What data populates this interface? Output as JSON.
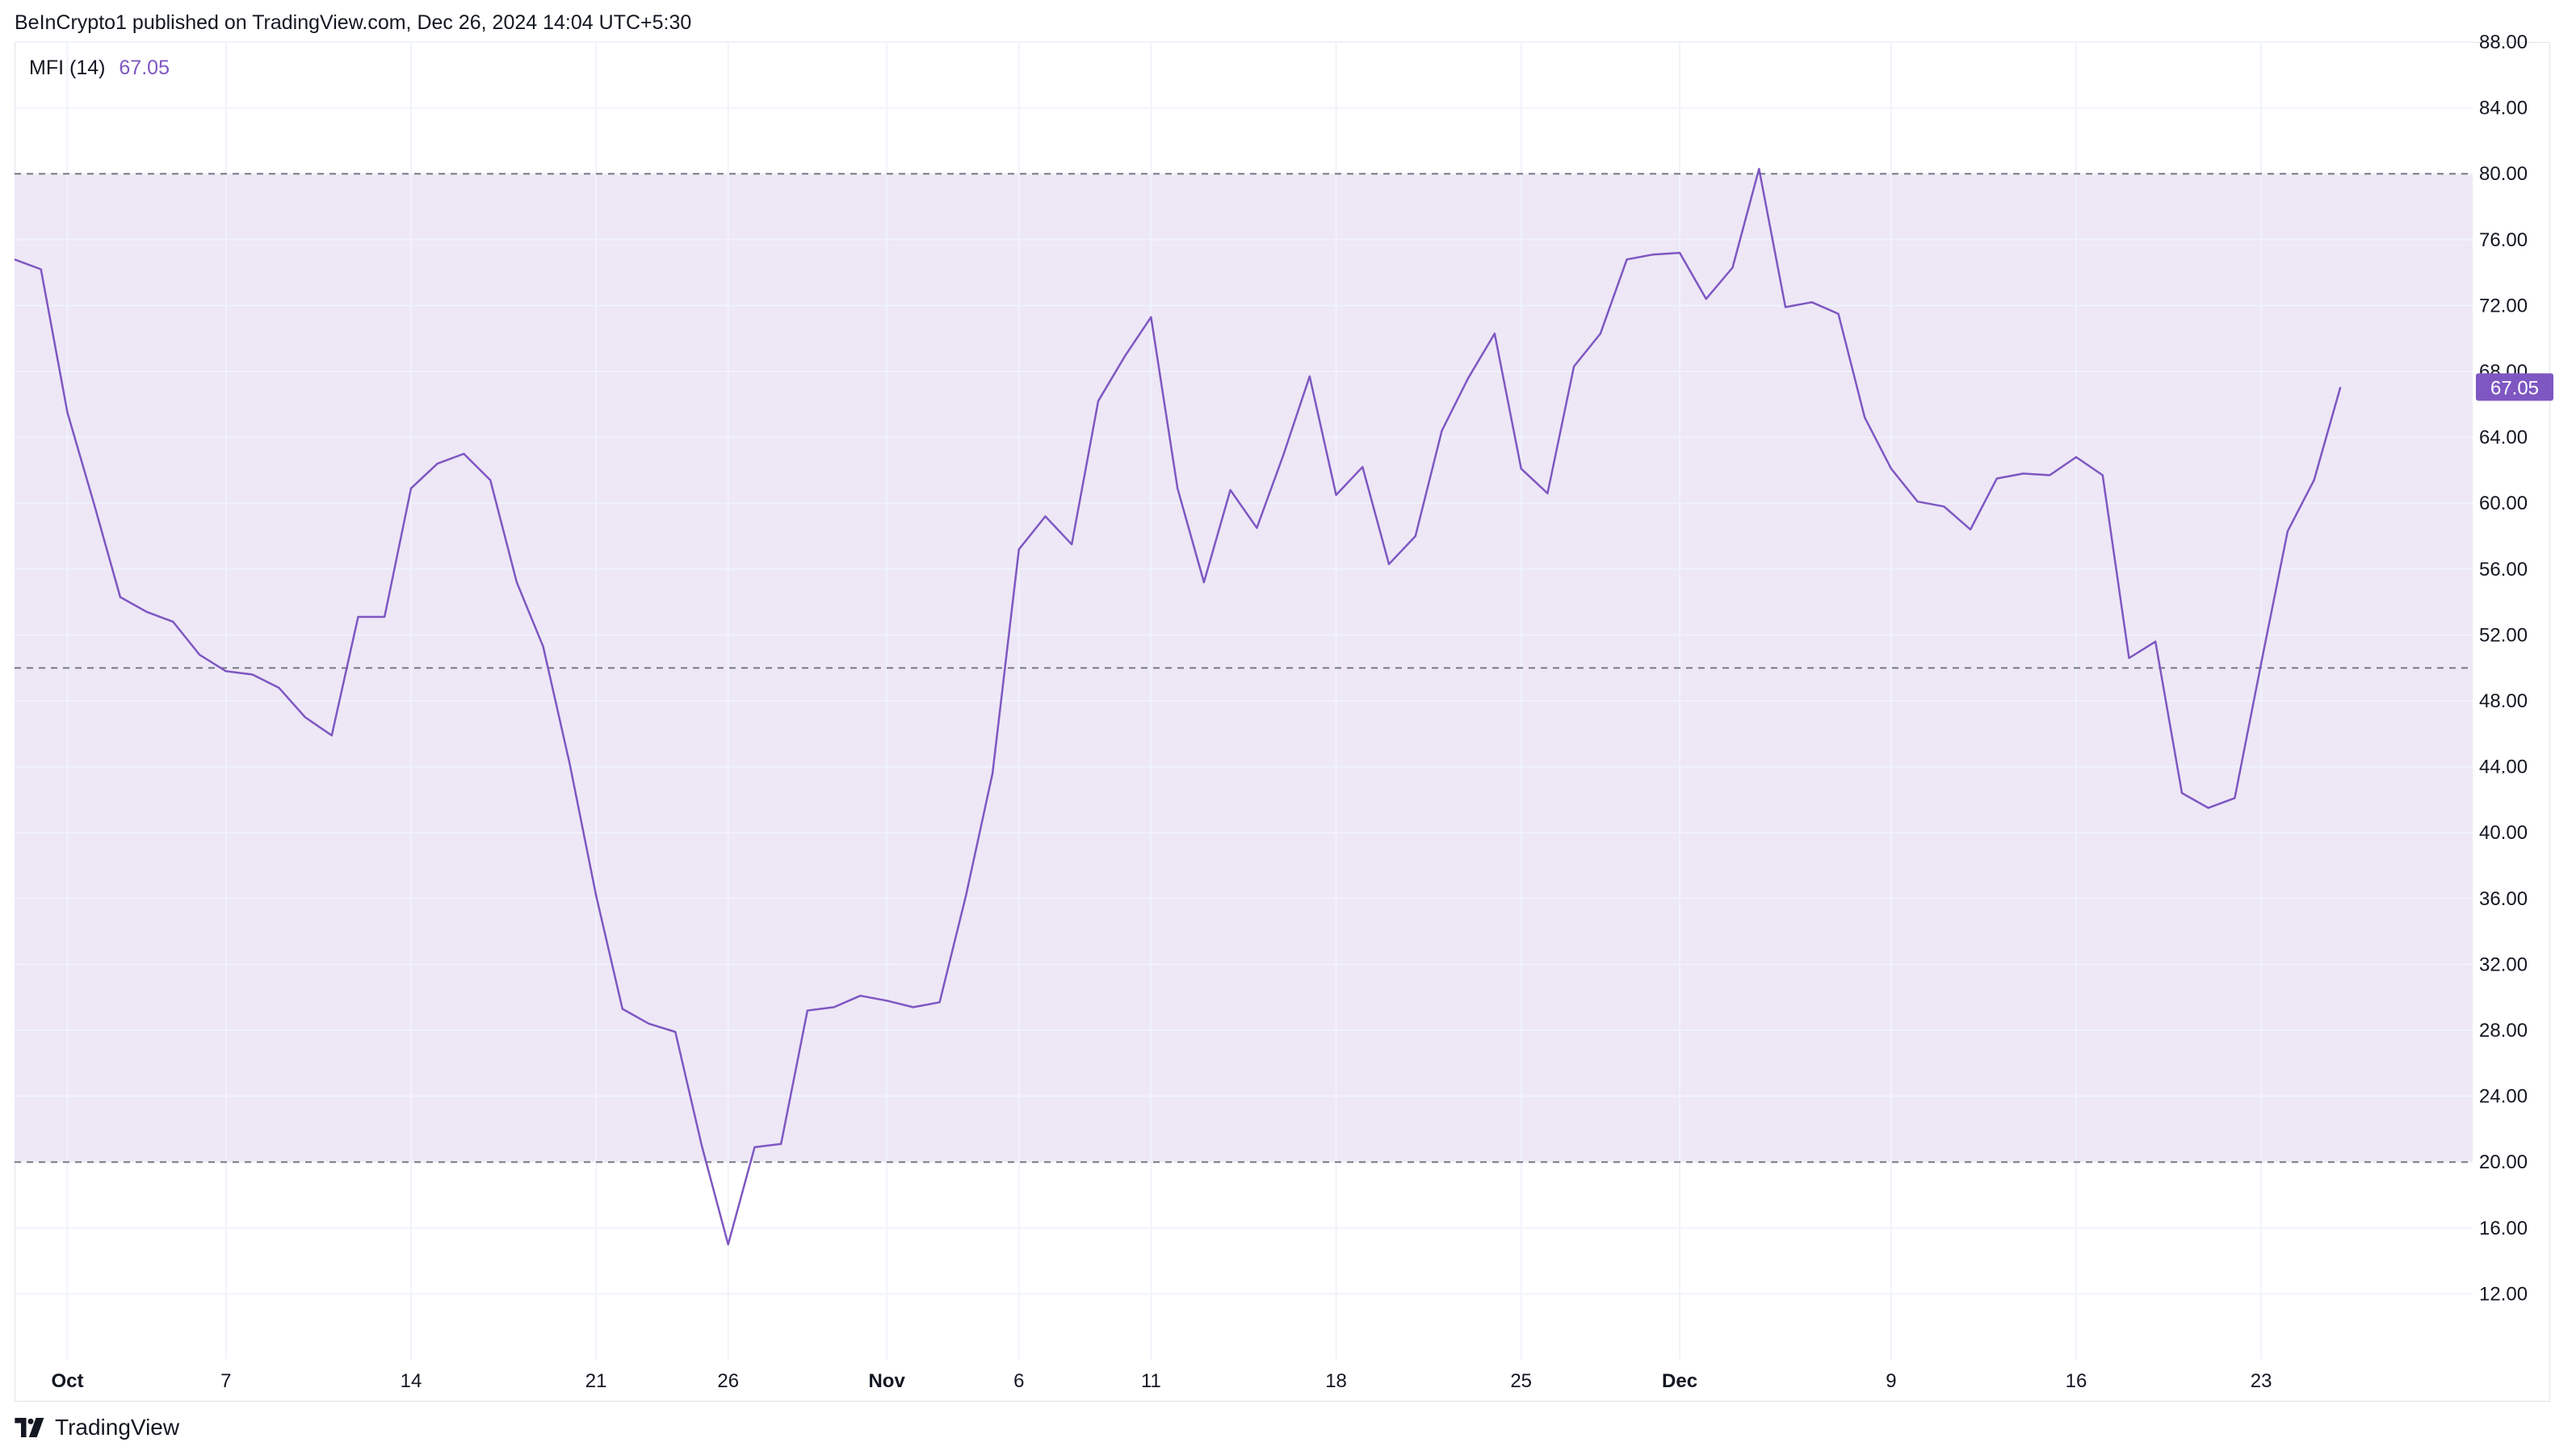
{
  "header": {
    "text": "BeInCrypto1 published on TradingView.com, Dec 26, 2024 14:04 UTC+5:30"
  },
  "indicator": {
    "name": "MFI (14)",
    "value": "67.05"
  },
  "footer": {
    "brand": "TradingView"
  },
  "colors": {
    "line": "#7e57c2",
    "band_fill": "#ede7f6",
    "grid": "#f0f3fa",
    "axis_text": "#131722",
    "badge_bg": "#7e57c2",
    "bands": "#787b86"
  },
  "chart_data": {
    "type": "line",
    "title": "",
    "xlabel": "",
    "ylabel": "",
    "ylim": [
      8,
      88
    ],
    "yticks": [
      12,
      16,
      20,
      24,
      28,
      32,
      36,
      40,
      44,
      48,
      52,
      56,
      60,
      64,
      68,
      72,
      76,
      80,
      84,
      88
    ],
    "ytick_labels": [
      "12.00",
      "16.00",
      "20.00",
      "24.00",
      "28.00",
      "32.00",
      "36.00",
      "40.00",
      "44.00",
      "48.00",
      "52.00",
      "56.00",
      "60.00",
      "64.00",
      "68.00",
      "72.00",
      "76.00",
      "80.00",
      "84.00",
      "88.00"
    ],
    "xlim": [
      "2024-09-29",
      "2024-12-31"
    ],
    "xticks": [
      {
        "date": "2024-10-01",
        "label": "Oct",
        "bold": true
      },
      {
        "date": "2024-10-07",
        "label": "7",
        "bold": false
      },
      {
        "date": "2024-10-14",
        "label": "14",
        "bold": false
      },
      {
        "date": "2024-10-21",
        "label": "21",
        "bold": false
      },
      {
        "date": "2024-10-26",
        "label": "26",
        "bold": false
      },
      {
        "date": "2024-11-01",
        "label": "Nov",
        "bold": true
      },
      {
        "date": "2024-11-06",
        "label": "6",
        "bold": false
      },
      {
        "date": "2024-11-11",
        "label": "11",
        "bold": false
      },
      {
        "date": "2024-11-18",
        "label": "18",
        "bold": false
      },
      {
        "date": "2024-11-25",
        "label": "25",
        "bold": false
      },
      {
        "date": "2024-12-01",
        "label": "Dec",
        "bold": true
      },
      {
        "date": "2024-12-09",
        "label": "9",
        "bold": false
      },
      {
        "date": "2024-12-16",
        "label": "16",
        "bold": false
      },
      {
        "date": "2024-12-23",
        "label": "23",
        "bold": false
      }
    ],
    "bands": {
      "upper": 80,
      "middle": 50,
      "lower": 20
    },
    "last_value_label": "67.05",
    "series": [
      {
        "values": [
          [
            "2024-09-29",
            74.8
          ],
          [
            "2024-09-30",
            74.2
          ],
          [
            "2024-10-01",
            65.5
          ],
          [
            "2024-10-02",
            60.0
          ],
          [
            "2024-10-03",
            54.3
          ],
          [
            "2024-10-04",
            53.4
          ],
          [
            "2024-10-05",
            52.8
          ],
          [
            "2024-10-06",
            50.8
          ],
          [
            "2024-10-07",
            49.8
          ],
          [
            "2024-10-08",
            49.6
          ],
          [
            "2024-10-09",
            48.8
          ],
          [
            "2024-10-10",
            47.0
          ],
          [
            "2024-10-11",
            45.9
          ],
          [
            "2024-10-12",
            53.1
          ],
          [
            "2024-10-13",
            53.1
          ],
          [
            "2024-10-14",
            60.9
          ],
          [
            "2024-10-15",
            62.4
          ],
          [
            "2024-10-16",
            63.0
          ],
          [
            "2024-10-17",
            61.4
          ],
          [
            "2024-10-18",
            55.2
          ],
          [
            "2024-10-19",
            51.3
          ],
          [
            "2024-10-20",
            44.2
          ],
          [
            "2024-10-21",
            36.2
          ],
          [
            "2024-10-22",
            29.3
          ],
          [
            "2024-10-23",
            28.4
          ],
          [
            "2024-10-24",
            27.9
          ],
          [
            "2024-10-25",
            21.0
          ],
          [
            "2024-10-26",
            15.0
          ],
          [
            "2024-10-27",
            20.9
          ],
          [
            "2024-10-28",
            21.1
          ],
          [
            "2024-10-29",
            29.2
          ],
          [
            "2024-10-30",
            29.4
          ],
          [
            "2024-10-31",
            30.1
          ],
          [
            "2024-11-01",
            29.8
          ],
          [
            "2024-11-02",
            29.4
          ],
          [
            "2024-11-03",
            29.7
          ],
          [
            "2024-11-04",
            36.2
          ],
          [
            "2024-11-05",
            43.6
          ],
          [
            "2024-11-06",
            57.2
          ],
          [
            "2024-11-07",
            59.2
          ],
          [
            "2024-11-08",
            57.5
          ],
          [
            "2024-11-09",
            66.2
          ],
          [
            "2024-11-10",
            68.9
          ],
          [
            "2024-11-11",
            71.3
          ],
          [
            "2024-11-12",
            60.9
          ],
          [
            "2024-11-13",
            55.2
          ],
          [
            "2024-11-14",
            60.8
          ],
          [
            "2024-11-15",
            58.5
          ],
          [
            "2024-11-16",
            62.9
          ],
          [
            "2024-11-17",
            67.7
          ],
          [
            "2024-11-18",
            60.5
          ],
          [
            "2024-11-19",
            62.2
          ],
          [
            "2024-11-20",
            56.3
          ],
          [
            "2024-11-21",
            58.0
          ],
          [
            "2024-11-22",
            64.4
          ],
          [
            "2024-11-23",
            67.6
          ],
          [
            "2024-11-24",
            70.3
          ],
          [
            "2024-11-25",
            62.1
          ],
          [
            "2024-11-26",
            60.6
          ],
          [
            "2024-11-27",
            68.3
          ],
          [
            "2024-11-28",
            70.3
          ],
          [
            "2024-11-29",
            74.8
          ],
          [
            "2024-11-30",
            75.1
          ],
          [
            "2024-12-01",
            75.2
          ],
          [
            "2024-12-02",
            72.4
          ],
          [
            "2024-12-03",
            74.3
          ],
          [
            "2024-12-04",
            80.3
          ],
          [
            "2024-12-05",
            71.9
          ],
          [
            "2024-12-06",
            72.2
          ],
          [
            "2024-12-07",
            71.5
          ],
          [
            "2024-12-08",
            65.2
          ],
          [
            "2024-12-09",
            62.1
          ],
          [
            "2024-12-10",
            60.1
          ],
          [
            "2024-12-11",
            59.8
          ],
          [
            "2024-12-12",
            58.4
          ],
          [
            "2024-12-13",
            61.5
          ],
          [
            "2024-12-14",
            61.8
          ],
          [
            "2024-12-15",
            61.7
          ],
          [
            "2024-12-16",
            62.8
          ],
          [
            "2024-12-17",
            61.7
          ],
          [
            "2024-12-18",
            50.6
          ],
          [
            "2024-12-19",
            51.6
          ],
          [
            "2024-12-20",
            42.4
          ],
          [
            "2024-12-21",
            41.5
          ],
          [
            "2024-12-22",
            42.1
          ],
          [
            "2024-12-23",
            50.3
          ],
          [
            "2024-12-24",
            58.3
          ],
          [
            "2024-12-25",
            61.4
          ],
          [
            "2024-12-26",
            67.05
          ]
        ]
      }
    ]
  }
}
